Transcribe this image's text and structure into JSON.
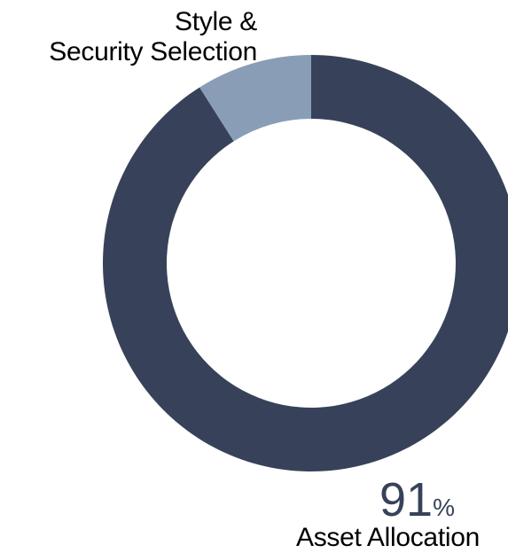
{
  "chart_data": {
    "type": "pie",
    "style": "donut",
    "slices": [
      {
        "label": "Asset Allocation",
        "value": 91,
        "color": "#37425a"
      },
      {
        "label_lines": [
          "Style &",
          "Security Selection"
        ],
        "value": 9,
        "color": "#8a9db7"
      }
    ],
    "highlight": {
      "value": "91",
      "unit": "%",
      "label": "Asset Allocation"
    }
  }
}
